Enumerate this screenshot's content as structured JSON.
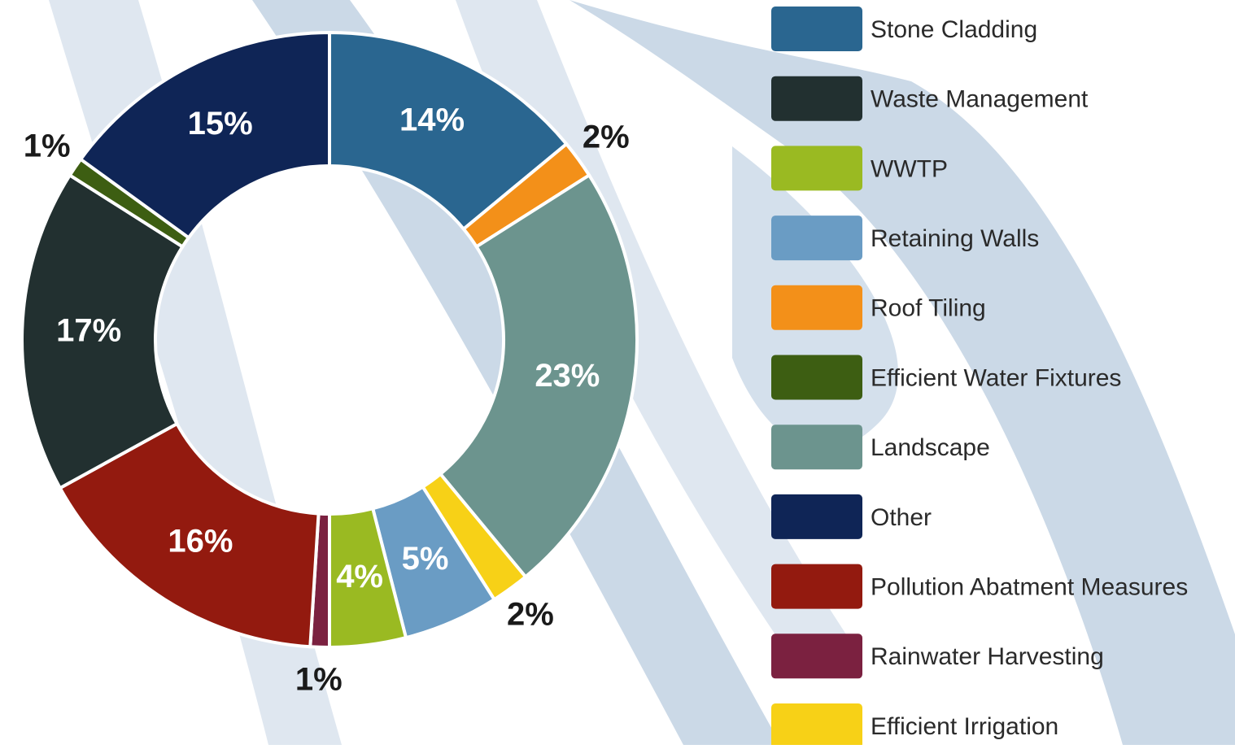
{
  "chart_data": {
    "type": "donut",
    "categories": [
      "Stone Cladding",
      "Waste Management",
      "WWTP",
      "Retaining Walls",
      "Roof Tiling",
      "Efficient Water Fixtures",
      "Landscape",
      "Other",
      "Pollution Abatment Measures",
      "Rainwater Harvesting",
      "Efficient Irrigation"
    ],
    "values": [
      14,
      17,
      4,
      5,
      2,
      1,
      23,
      15,
      16,
      1,
      2
    ],
    "value_labels": [
      "14%",
      "17%",
      "4%",
      "5%",
      "2%",
      "1%",
      "23%",
      "15%",
      "16%",
      "1%",
      "2%"
    ],
    "colors": [
      "#2a6690",
      "#223030",
      "#9aba22",
      "#6a9cc4",
      "#f39019",
      "#3d5e12",
      "#6c948e",
      "#0f2556",
      "#931a0f",
      "#7b2140",
      "#f7d117"
    ],
    "legend": "right"
  }
}
